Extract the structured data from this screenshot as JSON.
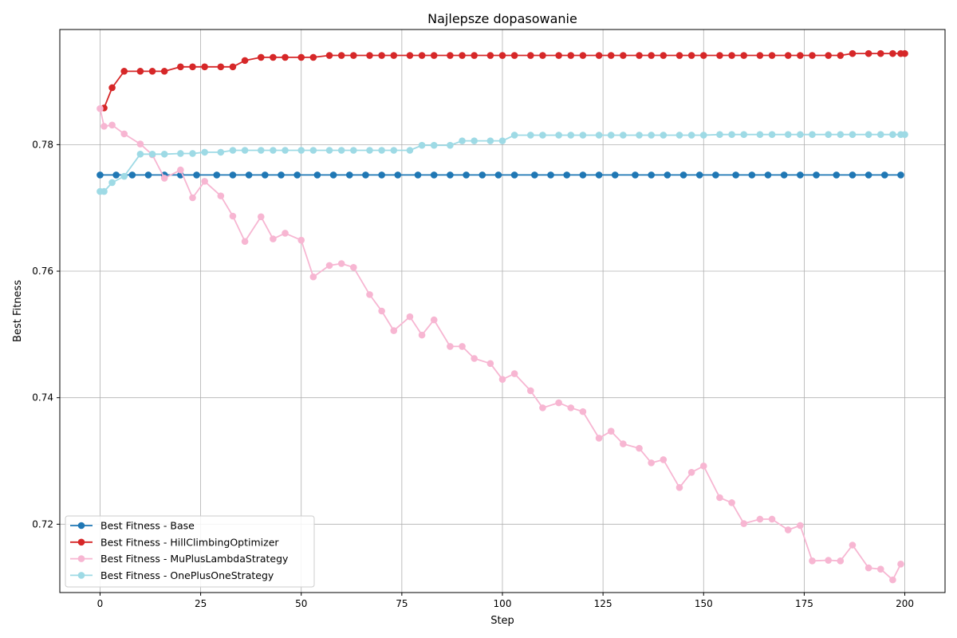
{
  "chart_data": {
    "type": "line",
    "title": "Najlepsze dopasowanie",
    "xlabel": "Step",
    "ylabel": "Best Fitness",
    "xlim": [
      -10,
      210
    ],
    "ylim": [
      0.7092,
      0.7982
    ],
    "xticks": [
      0,
      25,
      50,
      75,
      100,
      125,
      150,
      175,
      200
    ],
    "xtick_labels": [
      "0",
      "25",
      "50",
      "75",
      "100",
      "125",
      "150",
      "175",
      "200"
    ],
    "yticks": [
      0.72,
      0.74,
      0.76,
      0.78
    ],
    "ytick_labels": [
      "0.72",
      "0.74",
      "0.76",
      "0.78"
    ],
    "grid": true,
    "legend_position": "lower-left",
    "series": [
      {
        "name": "Best Fitness - Base",
        "color": "#1f77b4",
        "x": [
          0,
          4,
          8,
          12,
          16,
          20,
          24,
          29,
          33,
          37,
          41,
          45,
          49,
          54,
          58,
          62,
          66,
          70,
          74,
          79,
          83,
          87,
          91,
          95,
          99,
          103,
          108,
          112,
          116,
          120,
          124,
          128,
          133,
          137,
          141,
          145,
          149,
          153,
          158,
          162,
          166,
          170,
          174,
          178,
          183,
          187,
          191,
          195,
          199
        ],
        "y": [
          0.7752,
          0.7752,
          0.7752,
          0.7752,
          0.7752,
          0.7752,
          0.7752,
          0.7752,
          0.7752,
          0.7752,
          0.7752,
          0.7752,
          0.7752,
          0.7752,
          0.7752,
          0.7752,
          0.7752,
          0.7752,
          0.7752,
          0.7752,
          0.7752,
          0.7752,
          0.7752,
          0.7752,
          0.7752,
          0.7752,
          0.7752,
          0.7752,
          0.7752,
          0.7752,
          0.7752,
          0.7752,
          0.7752,
          0.7752,
          0.7752,
          0.7752,
          0.7752,
          0.7752,
          0.7752,
          0.7752,
          0.7752,
          0.7752,
          0.7752,
          0.7752,
          0.7752,
          0.7752,
          0.7752,
          0.7752,
          0.7752
        ]
      },
      {
        "name": "Best Fitness - HillClimbingOptimizer",
        "color": "#d62728",
        "x": [
          1,
          3,
          6,
          10,
          13,
          16,
          20,
          23,
          26,
          30,
          33,
          36,
          40,
          43,
          46,
          50,
          53,
          57,
          60,
          63,
          67,
          70,
          73,
          77,
          80,
          83,
          87,
          90,
          93,
          97,
          100,
          103,
          107,
          110,
          114,
          117,
          120,
          124,
          127,
          130,
          134,
          137,
          140,
          144,
          147,
          150,
          154,
          157,
          160,
          164,
          167,
          171,
          174,
          177,
          181,
          184,
          187,
          191,
          194,
          197,
          199,
          200
        ],
        "y": [
          0.7858,
          0.789,
          0.7916,
          0.7916,
          0.7916,
          0.7916,
          0.7923,
          0.7923,
          0.7923,
          0.7923,
          0.7923,
          0.7933,
          0.7938,
          0.7938,
          0.7938,
          0.7938,
          0.7938,
          0.7941,
          0.7941,
          0.7941,
          0.7941,
          0.7941,
          0.7941,
          0.7941,
          0.7941,
          0.7941,
          0.7941,
          0.7941,
          0.7941,
          0.7941,
          0.7941,
          0.7941,
          0.7941,
          0.7941,
          0.7941,
          0.7941,
          0.7941,
          0.7941,
          0.7941,
          0.7941,
          0.7941,
          0.7941,
          0.7941,
          0.7941,
          0.7941,
          0.7941,
          0.7941,
          0.7941,
          0.7941,
          0.7941,
          0.7941,
          0.7941,
          0.7941,
          0.7941,
          0.7941,
          0.7941,
          0.7944,
          0.7944,
          0.7944,
          0.7944,
          0.7944,
          0.7944
        ]
      },
      {
        "name": "Best Fitness - MuPlusLambdaStrategy",
        "color": "#f7b6d2",
        "x": [
          0,
          1,
          3,
          6,
          10,
          13,
          16,
          20,
          23,
          26,
          30,
          33,
          36,
          40,
          43,
          46,
          50,
          53,
          57,
          60,
          63,
          67,
          70,
          73,
          77,
          80,
          83,
          87,
          90,
          93,
          97,
          100,
          103,
          107,
          110,
          114,
          117,
          120,
          124,
          127,
          130,
          134,
          137,
          140,
          144,
          147,
          150,
          154,
          157,
          160,
          164,
          167,
          171,
          174,
          177,
          181,
          184,
          187,
          191,
          194,
          197,
          199
        ],
        "y": [
          0.7857,
          0.7829,
          0.7831,
          0.7817,
          0.7801,
          0.7784,
          0.7747,
          0.776,
          0.7716,
          0.7742,
          0.7719,
          0.7687,
          0.7647,
          0.7686,
          0.7651,
          0.766,
          0.7649,
          0.7591,
          0.7609,
          0.7612,
          0.7606,
          0.7563,
          0.7537,
          0.7506,
          0.7528,
          0.7499,
          0.7523,
          0.7481,
          0.7481,
          0.7462,
          0.7454,
          0.7429,
          0.7438,
          0.7411,
          0.7384,
          0.7392,
          0.7384,
          0.7378,
          0.7336,
          0.7347,
          0.7327,
          0.732,
          0.7297,
          0.7302,
          0.7258,
          0.7282,
          0.7292,
          0.7242,
          0.7234,
          0.7201,
          0.7208,
          0.7208,
          0.7191,
          0.7198,
          0.7142,
          0.7143,
          0.7142,
          0.7167,
          0.7131,
          0.7129,
          0.7112,
          0.7137
        ]
      },
      {
        "name": "Best Fitness - OnePlusOneStrategy",
        "color": "#9edae5",
        "x": [
          0,
          1,
          3,
          6,
          10,
          13,
          16,
          20,
          23,
          26,
          30,
          33,
          36,
          40,
          43,
          46,
          50,
          53,
          57,
          60,
          63,
          67,
          70,
          73,
          77,
          80,
          83,
          87,
          90,
          93,
          97,
          100,
          103,
          107,
          110,
          114,
          117,
          120,
          124,
          127,
          130,
          134,
          137,
          140,
          144,
          147,
          150,
          154,
          157,
          160,
          164,
          167,
          171,
          174,
          177,
          181,
          184,
          187,
          191,
          194,
          197,
          199,
          200
        ],
        "y": [
          0.7726,
          0.7726,
          0.774,
          0.775,
          0.7785,
          0.7785,
          0.7785,
          0.7786,
          0.7786,
          0.7788,
          0.7788,
          0.7791,
          0.7791,
          0.7791,
          0.7791,
          0.7791,
          0.7791,
          0.7791,
          0.7791,
          0.7791,
          0.7791,
          0.7791,
          0.7791,
          0.7791,
          0.7791,
          0.7799,
          0.7799,
          0.7799,
          0.7806,
          0.7806,
          0.7806,
          0.7806,
          0.7815,
          0.7815,
          0.7815,
          0.7815,
          0.7815,
          0.7815,
          0.7815,
          0.7815,
          0.7815,
          0.7815,
          0.7815,
          0.7815,
          0.7815,
          0.7815,
          0.7815,
          0.7816,
          0.7816,
          0.7816,
          0.7816,
          0.7816,
          0.7816,
          0.7816,
          0.7816,
          0.7816,
          0.7816,
          0.7816,
          0.7816,
          0.7816,
          0.7816,
          0.7816,
          0.7816
        ]
      }
    ]
  }
}
